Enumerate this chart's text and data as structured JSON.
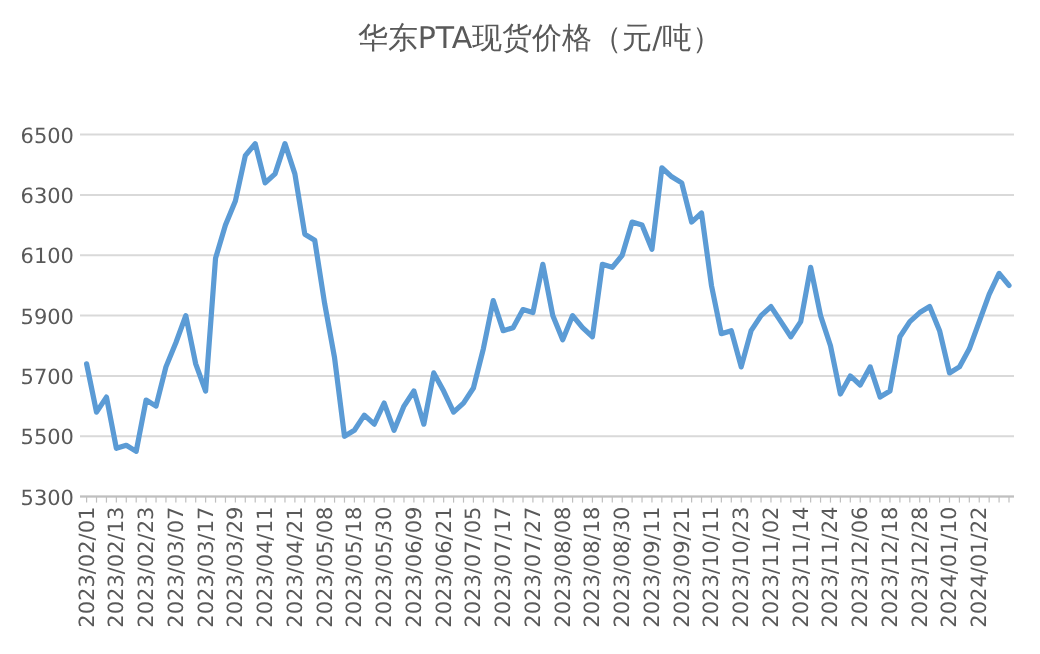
{
  "chart_data": {
    "type": "line",
    "title": "华东PTA现货价格（元/吨）",
    "categories": [
      "2023/02/01",
      null,
      null,
      "2023/02/13",
      null,
      null,
      "2023/02/23",
      null,
      null,
      "2023/03/07",
      null,
      null,
      "2023/03/17",
      null,
      null,
      "2023/03/29",
      null,
      null,
      "2023/04/11",
      null,
      null,
      "2023/04/21",
      null,
      null,
      "2023/05/08",
      null,
      null,
      "2023/05/18",
      null,
      null,
      "2023/05/30",
      null,
      null,
      "2023/06/09",
      null,
      null,
      "2023/06/21",
      null,
      null,
      "2023/07/05",
      null,
      null,
      "2023/07/17",
      null,
      null,
      "2023/07/27",
      null,
      null,
      "2023/08/08",
      null,
      null,
      "2023/08/18",
      null,
      null,
      "2023/08/30",
      null,
      null,
      "2023/09/11",
      null,
      null,
      "2023/09/21",
      null,
      null,
      "2023/10/11",
      null,
      null,
      "2023/10/23",
      null,
      null,
      "2023/11/02",
      null,
      null,
      "2023/11/14",
      null,
      null,
      "2023/11/24",
      null,
      null,
      "2023/12/06",
      null,
      null,
      "2023/12/18",
      null,
      null,
      "2023/12/28",
      null,
      null,
      "2024/01/10",
      null,
      null,
      "2024/01/22",
      null,
      null,
      null
    ],
    "series": [
      {
        "color": "#5b9bd5",
        "values": [
          5740,
          5580,
          5630,
          5460,
          5470,
          5450,
          5620,
          5600,
          5730,
          5810,
          5900,
          5740,
          5650,
          6090,
          6200,
          6280,
          6430,
          6470,
          6340,
          6370,
          6470,
          6370,
          6170,
          6150,
          5940,
          5760,
          5500,
          5520,
          5570,
          5540,
          5610,
          5520,
          5600,
          5650,
          5540,
          5710,
          5650,
          5580,
          5610,
          5660,
          5790,
          5950,
          5850,
          5860,
          5920,
          5910,
          6070,
          5900,
          5820,
          5900,
          5860,
          5830,
          6070,
          6060,
          6100,
          6210,
          6200,
          6120,
          6390,
          6360,
          6340,
          6210,
          6240,
          6000,
          5840,
          5850,
          5730,
          5850,
          5900,
          5930,
          5880,
          5830,
          5880,
          6060,
          5900,
          5800,
          5640,
          5700,
          5670,
          5730,
          5630,
          5650,
          5830,
          5880,
          5910,
          5930,
          5850,
          5710,
          5730,
          5790,
          5880,
          5970,
          6040,
          6000
        ]
      }
    ],
    "ylim": [
      5300,
      6500
    ],
    "yticks": [
      5300,
      5500,
      5700,
      5900,
      6100,
      6300,
      6500
    ],
    "grid": "y",
    "marker": "none",
    "line_style": "solid"
  }
}
